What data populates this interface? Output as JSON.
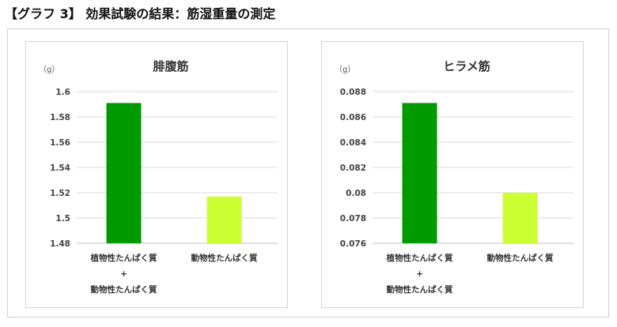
{
  "page_title": "【グラフ 3】 効果試験の結果：筋湿重量の測定",
  "chart_data": [
    {
      "type": "bar",
      "title": "腓腹筋",
      "unit": "（g）",
      "categories": [
        [
          "植物性たんぱく質",
          "+",
          "動物性たんぱく質"
        ],
        [
          "動物性たんぱく質"
        ]
      ],
      "values": [
        1.591,
        1.517
      ],
      "colors": [
        "#009900",
        "#ccff33"
      ],
      "ylim": [
        1.48,
        1.6
      ],
      "yticks": [
        "1.6",
        "1.58",
        "1.56",
        "1.54",
        "1.52",
        "1.5",
        "1.48"
      ],
      "ytick_values": [
        1.6,
        1.58,
        1.56,
        1.54,
        1.52,
        1.5,
        1.48
      ],
      "grid": true
    },
    {
      "type": "bar",
      "title": "ヒラメ筋",
      "unit": "（g）",
      "categories": [
        [
          "植物性たんぱく質",
          "+",
          "動物性たんぱく質"
        ],
        [
          "動物性たんぱく質"
        ]
      ],
      "values": [
        0.0871,
        0.08
      ],
      "colors": [
        "#009900",
        "#ccff33"
      ],
      "ylim": [
        0.076,
        0.088
      ],
      "yticks": [
        "0.088",
        "0.086",
        "0.084",
        "0.082",
        "0.08",
        "0.078",
        "0.076"
      ],
      "ytick_values": [
        0.088,
        0.086,
        0.084,
        0.082,
        0.08,
        0.078,
        0.076
      ],
      "grid": true
    }
  ]
}
